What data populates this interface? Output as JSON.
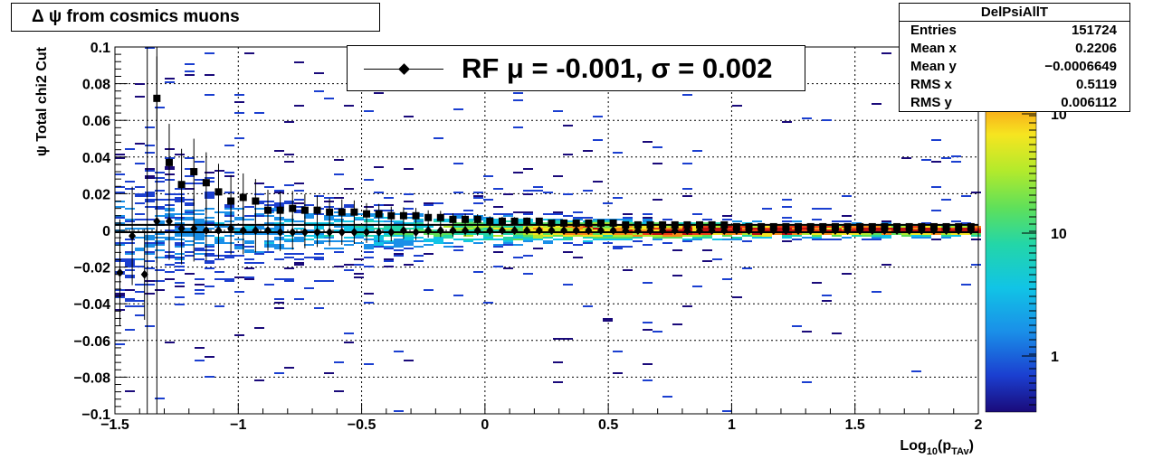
{
  "title": "Δ ψ from cosmics muons",
  "stats": {
    "name": "DelPsiAllT",
    "rows": [
      {
        "label": "Entries",
        "value": "151724"
      },
      {
        "label": "Mean x",
        "value": "0.2206"
      },
      {
        "label": "Mean y",
        "value": "−0.0006649"
      },
      {
        "label": "RMS x",
        "value": "0.5119"
      },
      {
        "label": "RMS y",
        "value": "0.006112"
      }
    ]
  },
  "legend": {
    "text": "RF μ = -0.001, σ =   0.002"
  },
  "chart_data": {
    "type": "heatmap",
    "xlabel": "Log10(pTAv)",
    "ylabel": "ψ  Total chi2 Cut",
    "xlim": [
      -1.5,
      2
    ],
    "ylim": [
      -0.1,
      0.1
    ],
    "grid": true,
    "x_ticks": [
      "−1.5",
      "−1",
      "−0.5",
      "0",
      "0.5",
      "1",
      "1.5",
      "2"
    ],
    "y_ticks": [
      "−0.1",
      "−0.08",
      "−0.06",
      "−0.04",
      "−0.02",
      "0",
      "0.02",
      "0.04",
      "0.06",
      "0.08",
      "0.1"
    ],
    "colorbar_labels": [
      "1",
      "10",
      "10"
    ],
    "colormap": [
      "#1a0a7a",
      "#1b3fd0",
      "#1a8fe8",
      "#11c4e6",
      "#23d6a8",
      "#5fe05a",
      "#b2ea2c",
      "#f6e520",
      "#fa8a17",
      "#ee3c15",
      "#c11010"
    ],
    "series": [
      {
        "name": "",
        "marker": "square",
        "x": [
          -1.33,
          -1.28,
          -1.23,
          -1.18,
          -1.13,
          -1.08,
          -1.03,
          -0.98,
          -0.93,
          -0.88,
          -0.83,
          -0.78,
          -0.73,
          -0.68,
          -0.63,
          -0.58,
          -0.53,
          -0.48,
          -0.43,
          -0.38,
          -0.33,
          -0.28,
          -0.23,
          -0.18,
          -0.13,
          -0.08,
          -0.03,
          0.02,
          0.07,
          0.12,
          0.17,
          0.22,
          0.27,
          0.32,
          0.37,
          0.42,
          0.47,
          0.52,
          0.57,
          0.62,
          0.67,
          0.72,
          0.77,
          0.82,
          0.87,
          0.92,
          0.97,
          1.02,
          1.07,
          1.12,
          1.17,
          1.22,
          1.27,
          1.32,
          1.37,
          1.42,
          1.47,
          1.52,
          1.57,
          1.62,
          1.67,
          1.72,
          1.77,
          1.82,
          1.87,
          1.92,
          1.97
        ],
        "y": [
          0.072,
          0.037,
          0.025,
          0.032,
          0.026,
          0.021,
          0.016,
          0.018,
          0.016,
          0.011,
          0.011,
          0.012,
          0.011,
          0.011,
          0.01,
          0.01,
          0.01,
          0.009,
          0.009,
          0.008,
          0.008,
          0.008,
          0.007,
          0.007,
          0.006,
          0.006,
          0.006,
          0.005,
          0.005,
          0.005,
          0.005,
          0.005,
          0.004,
          0.004,
          0.004,
          0.004,
          0.004,
          0.004,
          0.003,
          0.003,
          0.003,
          0.003,
          0.003,
          0.003,
          0.003,
          0.003,
          0.003,
          0.002,
          0.002,
          0.002,
          0.002,
          0.002,
          0.002,
          0.002,
          0.002,
          0.002,
          0.002,
          0.002,
          0.002,
          0.002,
          0.002,
          0.002,
          0.002,
          0.002,
          0.002,
          0.002,
          0.002
        ]
      },
      {
        "name": "",
        "marker": "diamond",
        "x": [
          -1.48,
          -1.43,
          -1.38,
          -1.33,
          -1.28,
          -1.23,
          -1.18,
          -1.13,
          -1.08,
          -1.03,
          -0.98,
          -0.93,
          -0.88,
          -0.83,
          -0.78,
          -0.73,
          -0.68,
          -0.63,
          -0.58,
          -0.53,
          -0.48,
          -0.43,
          -0.38,
          -0.33,
          -0.28,
          -0.23,
          -0.18,
          -0.13,
          -0.08,
          -0.03,
          0.02,
          0.07,
          0.12,
          0.17,
          0.22,
          0.27,
          0.32,
          0.37,
          0.42,
          0.47,
          0.52,
          0.57,
          0.62,
          0.67,
          0.72,
          0.77,
          0.82,
          0.87,
          0.92,
          0.97,
          1.02,
          1.07,
          1.12,
          1.17,
          1.22,
          1.27,
          1.32,
          1.37,
          1.42,
          1.47,
          1.52,
          1.57,
          1.62,
          1.67,
          1.72,
          1.77,
          1.82,
          1.87,
          1.92,
          1.97
        ],
        "y": [
          -0.023,
          -0.003,
          -0.024,
          0.005,
          0.005,
          0.001,
          0.001,
          0.0,
          0.0,
          0.001,
          0.0,
          0.0,
          0.0,
          -0.001,
          -0.001,
          -0.001,
          -0.001,
          -0.001,
          -0.001,
          -0.001,
          -0.001,
          -0.001,
          -0.001,
          0.0,
          -0.001,
          0.0,
          0.0,
          0.0,
          0.0,
          0.0,
          0.0,
          0.0,
          0.0,
          0.0,
          0.0,
          0.0,
          0.0,
          0.0,
          0.0,
          0.0,
          0.0,
          0.0,
          0.0,
          0.0,
          0.0,
          0.0,
          0.0,
          0.0,
          0.0,
          0.0,
          0.0,
          0.0,
          0.0,
          0.0,
          0.0,
          0.0,
          0.0,
          0.0,
          0.0,
          0.0,
          0.0,
          0.0,
          0.0,
          0.0,
          0.0,
          0.0,
          0.0,
          0.0,
          0.0,
          0.0
        ]
      }
    ],
    "fit_lines": [
      0.003,
      -0.001
    ]
  }
}
